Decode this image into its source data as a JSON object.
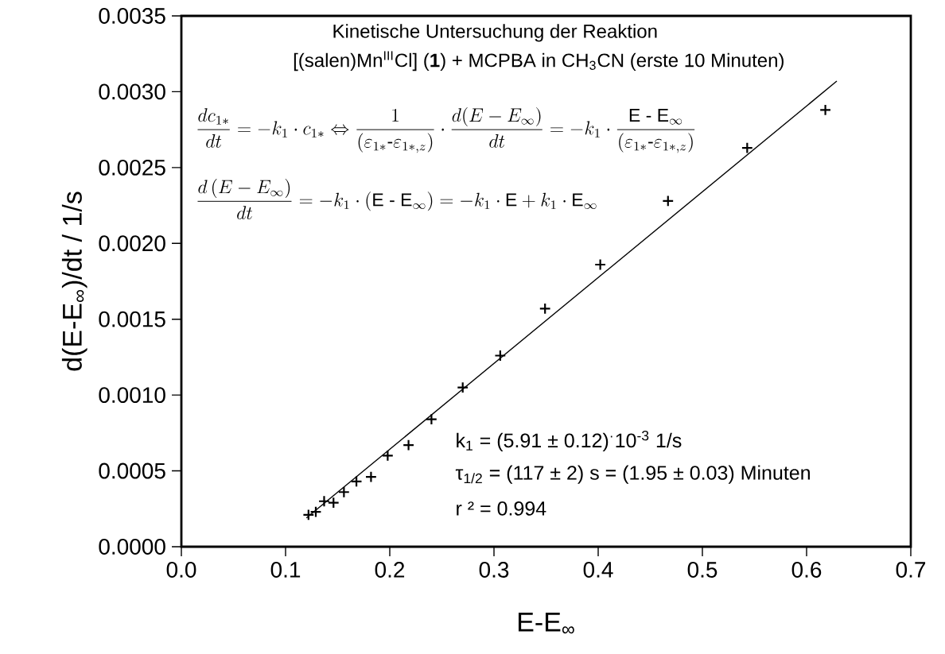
{
  "chart_data": {
    "type": "scatter",
    "title": "Kinetische Untersuchung der Reaktion",
    "subtitle": "[(salen)Mn$^{III}$Cl] (**1**) + MCPBA in CH$_{3}$CN (erste 10 Minuten)",
    "xlabel": "E-E$_{∞}$",
    "ylabel": "d(E-E$_{∞}$)/dt  / 1/s",
    "xlim": [
      0,
      0.7
    ],
    "ylim": [
      0,
      0.0035
    ],
    "xticks": [
      {
        "value": 0,
        "label": "0.0"
      },
      {
        "value": 0.1,
        "label": "0.1"
      },
      {
        "value": 0.2,
        "label": "0.2"
      },
      {
        "value": 0.3,
        "label": "0.3"
      },
      {
        "value": 0.4,
        "label": "0.4"
      },
      {
        "value": 0.5,
        "label": "0.5"
      },
      {
        "value": 0.6,
        "label": "0.6"
      },
      {
        "value": 0.7,
        "label": "0.7"
      }
    ],
    "yticks": [
      {
        "value": 0,
        "label": "0.0000"
      },
      {
        "value": 0.0005,
        "label": "0.0005"
      },
      {
        "value": 0.001,
        "label": "0.0010"
      },
      {
        "value": 0.0015,
        "label": "0.0015"
      },
      {
        "value": 0.002,
        "label": "0.0020"
      },
      {
        "value": 0.0025,
        "label": "0.0025"
      },
      {
        "value": 0.003,
        "label": "0.0030"
      },
      {
        "value": 0.0035,
        "label": "0.0035"
      }
    ],
    "grid": false,
    "marker": "cross",
    "series": [
      {
        "color": "#000000",
        "x": [
          0.122,
          0.129,
          0.137,
          0.146,
          0.156,
          0.168,
          0.182,
          0.198,
          0.218,
          0.24,
          0.27,
          0.306,
          0.349,
          0.402,
          0.467,
          0.543,
          0.618
        ],
        "values": [
          0.00021,
          0.00023,
          0.0003,
          0.00029,
          0.00036,
          0.00043,
          0.00046,
          0.0006,
          0.00067,
          0.00084,
          0.00105,
          0.00126,
          0.00157,
          0.00186,
          0.00228,
          0.00263,
          0.00288
        ]
      },
      {
        "type": "line",
        "marker": "none",
        "color": "#000000",
        "x": [
          0.12,
          0.629
        ],
        "values": [
          0.00019,
          0.00307
        ]
      }
    ],
    "annotations": [
      "\\frac{dc_{1*}}{dt}=-k_1\\cdot c_{1*}\\Leftrightarrow\\frac{1}{\\left(\\varepsilon_{1*}\\mbox{-}\\varepsilon_{1*,z}\\right)}\\cdot\\frac{d(E-E_{\\infty})}{dt}=-k_1\\cdot\\frac{\\mathrm{E}\\mbox{ - }\\mathrm{E}_{\\infty}}{\\left(\\varepsilon_{1*}\\mbox{-}\\varepsilon_{1*,z}\\right)}",
      "\\frac{d\\left(E-E_{\\infty}\\right)}{dt}=-k_1\\cdot\\left(\\mathrm{E}\\mbox{ - }\\mathrm{E}_{\\infty}\\right)=-k_1\\cdot\\mathrm{E}+k_1\\cdot\\mathrm{E}_{\\infty}",
      "k$_{1}$ = (5.91 ± 0.12)$^{·}$10$^{-3}$ 1/s",
      "τ$_{1/2}$ = (117  ± 2) s = (1.95 ± 0.03) Minuten",
      "r ² = 0.994"
    ]
  }
}
